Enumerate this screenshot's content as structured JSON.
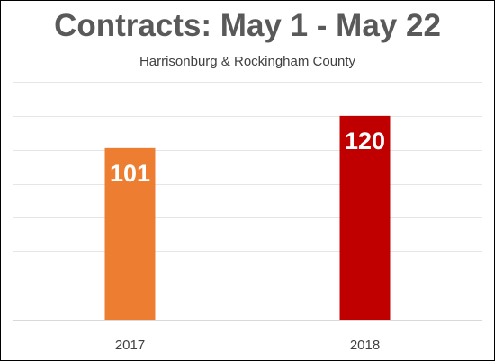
{
  "chart_data": {
    "type": "bar",
    "title": "Contracts: May 1 - May 22",
    "subtitle": "Harrisonburg & Rockingham County",
    "categories": [
      "2017",
      "2018"
    ],
    "values": [
      101,
      120
    ],
    "data_labels": [
      "101",
      "120"
    ],
    "bar_colors": [
      "#ED7D31",
      "#C00000"
    ],
    "ylim": [
      0,
      140
    ],
    "y_gridline_step": 20,
    "grid": true,
    "legend": "none",
    "ylabel": "",
    "xlabel": ""
  },
  "colors": {
    "title": "#595959",
    "text": "#404040",
    "gridline": "#E6E6E6",
    "axis": "#D9D9D9",
    "frame": "#000000"
  }
}
